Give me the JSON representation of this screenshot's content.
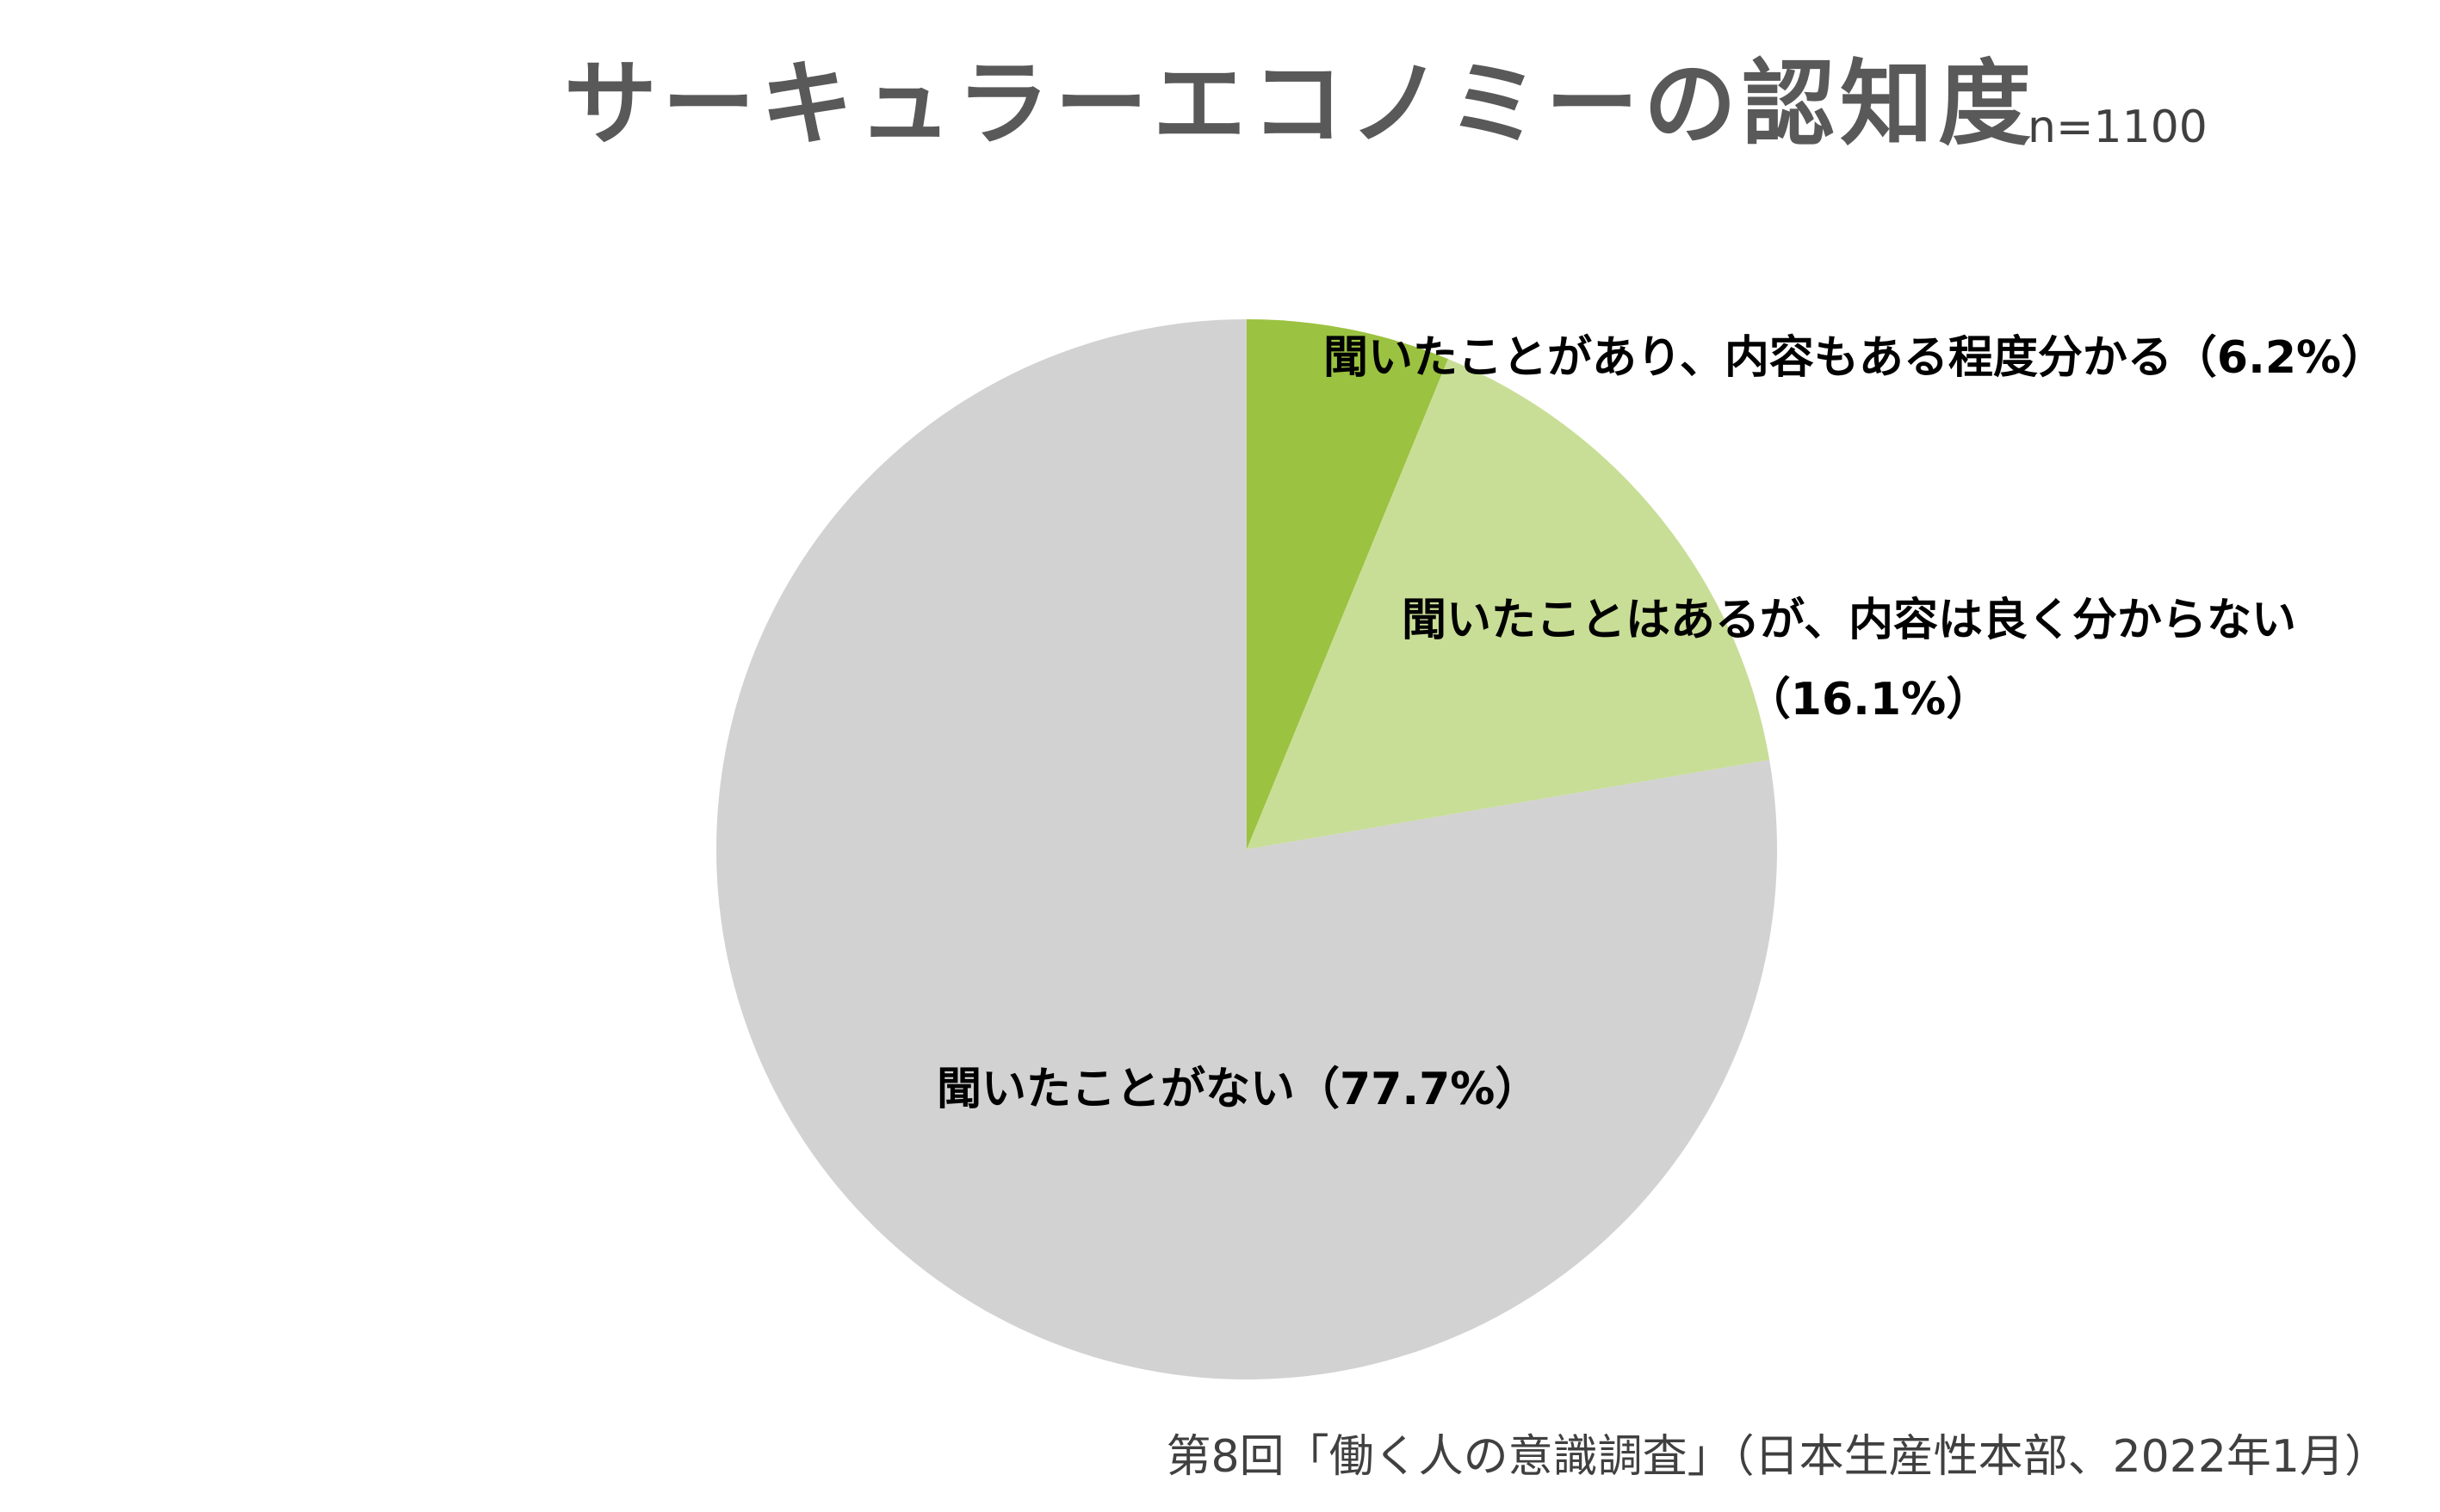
{
  "chart_data": {
    "type": "pie",
    "title": "サーキュラーエコノミーの認知度",
    "subtitle": "n=1100",
    "unit": "%",
    "start_angle_deg": 0,
    "direction": "clockwise",
    "slices": [
      {
        "label_lines": [
          "聞いたことがあり、内容もある程度分かる（6.2%）"
        ],
        "value": 6.2,
        "color": "#9bc240"
      },
      {
        "label_lines": [
          "聞いたことはあるが、内容は良く分からない",
          "（16.1%）"
        ],
        "value": 16.1,
        "color": "#c8de96"
      },
      {
        "label_lines": [
          "聞いたことがない（77.7%）"
        ],
        "value": 77.7,
        "color": "#d2d2d2"
      }
    ],
    "legend": "none",
    "source": "第8回「働く人の意識調査」（日本生産性本部、2022年1月）"
  }
}
